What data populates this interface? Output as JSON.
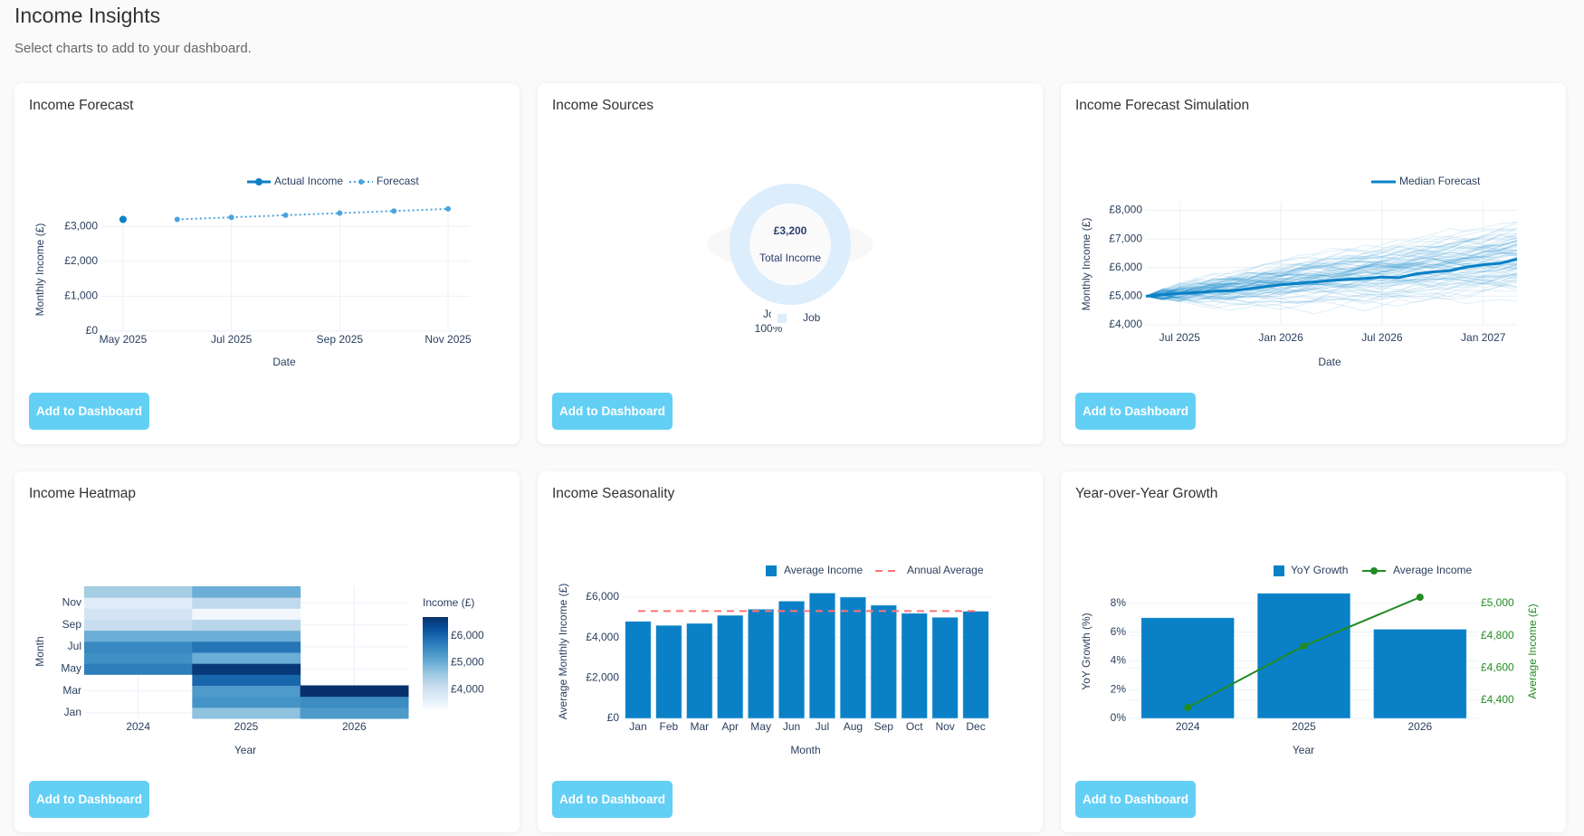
{
  "header": {
    "title": "Income Insights",
    "subtitle": "Select charts to add to your dashboard."
  },
  "button_label": "Add to Dashboard",
  "colors": {
    "primary": "#0a80c6",
    "forecast": "#4aa3df",
    "button": "#63cff5",
    "green": "#228b22",
    "annual_average": "#ff7373",
    "donut": "#dcedfc"
  },
  "cards": [
    {
      "title": "Income Forecast"
    },
    {
      "title": "Income Sources"
    },
    {
      "title": "Income Forecast Simulation"
    },
    {
      "title": "Income Heatmap"
    },
    {
      "title": "Income Seasonality"
    },
    {
      "title": "Year-over-Year Growth"
    }
  ],
  "chart_data": [
    {
      "type": "line",
      "xlabel": "Date",
      "ylabel": "Monthly Income (£)",
      "ylim": [
        0,
        3550
      ],
      "grid": true,
      "legend": "top-right",
      "x_ticks": [
        {
          "value": "2025-05",
          "label": "May 2025"
        },
        {
          "value": "2025-07",
          "label": "Jul 2025"
        },
        {
          "value": "2025-09",
          "label": "Sep 2025"
        },
        {
          "value": "2025-11",
          "label": "Nov 2025"
        }
      ],
      "y_ticks": [
        {
          "value": 0,
          "label": "£0"
        },
        {
          "value": 1000,
          "label": "£1,000"
        },
        {
          "value": 2000,
          "label": "£2,000"
        },
        {
          "value": 3000,
          "label": "£3,000"
        }
      ],
      "series": [
        {
          "name": "Actual Income",
          "x": [
            "2025-05"
          ],
          "y": [
            3200
          ]
        },
        {
          "name": "Forecast",
          "x": [
            "2025-06",
            "2025-07",
            "2025-08",
            "2025-09",
            "2025-10",
            "2025-11"
          ],
          "y": [
            3200,
            3260,
            3320,
            3380,
            3440,
            3500
          ]
        }
      ]
    },
    {
      "type": "pie",
      "center_value": "£3,200",
      "center_label": "Total Income",
      "legend": "bottom",
      "slices": [
        {
          "label": "Job",
          "value": 3200,
          "percent_label": "100%"
        }
      ]
    },
    {
      "type": "line",
      "xlabel": "Date",
      "ylabel": "Monthly Income (£)",
      "ylim": [
        3970,
        8300
      ],
      "grid": true,
      "legend": "top-right",
      "x_ticks": [
        {
          "value": "2025-07",
          "label": "Jul 2025"
        },
        {
          "value": "2026-01",
          "label": "Jan 2026"
        },
        {
          "value": "2026-07",
          "label": "Jul 2026"
        },
        {
          "value": "2027-01",
          "label": "Jan 2027"
        }
      ],
      "y_ticks": [
        {
          "value": 4000,
          "label": "£4,000"
        },
        {
          "value": 5000,
          "label": "£5,000"
        },
        {
          "value": 6000,
          "label": "£6,000"
        },
        {
          "value": 7000,
          "label": "£7,000"
        },
        {
          "value": 8000,
          "label": "£8,000"
        }
      ],
      "series": [
        {
          "name": "Median Forecast",
          "x": [
            "2025-05",
            "2025-06",
            "2025-07",
            "2025-08",
            "2025-09",
            "2025-10",
            "2025-11",
            "2025-12",
            "2026-01",
            "2026-02",
            "2026-03",
            "2026-04",
            "2026-05",
            "2026-06",
            "2026-07",
            "2026-08",
            "2026-09",
            "2026-10",
            "2026-11",
            "2026-12",
            "2027-01",
            "2027-02",
            "2027-03"
          ],
          "y": [
            5000,
            5050,
            5100,
            5130,
            5170,
            5190,
            5250,
            5330,
            5400,
            5450,
            5500,
            5550,
            5590,
            5620,
            5670,
            5650,
            5780,
            5850,
            5890,
            6020,
            6100,
            6150,
            6300
          ]
        }
      ]
    },
    {
      "type": "heatmap",
      "xlabel": "Year",
      "ylabel": "Month",
      "colorbar_title": "Income (£)",
      "colorscale": "Blues",
      "zlim": [
        3300,
        6700
      ],
      "years": [
        "2024",
        "2025",
        "2026"
      ],
      "months": [
        "Jan",
        "Feb",
        "Mar",
        "Apr",
        "May",
        "Jun",
        "Jul",
        "Aug",
        "Sep",
        "Oct",
        "Nov",
        "Dec"
      ],
      "y_tick_labels": [
        "Jan",
        "Mar",
        "May",
        "Jul",
        "Sep",
        "Nov"
      ],
      "colorbar_ticks": [
        {
          "value": 4000,
          "label": "£4,000"
        },
        {
          "value": 5000,
          "label": "£5,000"
        },
        {
          "value": 6000,
          "label": "£6,000"
        }
      ],
      "z": [
        [
          null,
          null,
          null,
          null,
          5700,
          5450,
          5550,
          5000,
          4100,
          3900,
          3700,
          4500
        ],
        [
          4700,
          5400,
          5300,
          6000,
          6600,
          5000,
          5800,
          5000,
          4300,
          3400,
          4200,
          5000
        ],
        [
          5300,
          5500,
          6700,
          null,
          null,
          null,
          null,
          null,
          null,
          null,
          null,
          null
        ]
      ]
    },
    {
      "type": "bar",
      "xlabel": "Month",
      "ylabel": "Average Monthly Income (£)",
      "ylim": [
        0,
        6580
      ],
      "grid": true,
      "legend": "top-right",
      "categories": [
        "Jan",
        "Feb",
        "Mar",
        "Apr",
        "May",
        "Jun",
        "Jul",
        "Aug",
        "Sep",
        "Oct",
        "Nov",
        "Dec"
      ],
      "y_ticks": [
        {
          "value": 0,
          "label": "£0"
        },
        {
          "value": 2000,
          "label": "£2,000"
        },
        {
          "value": 4000,
          "label": "£4,000"
        },
        {
          "value": 6000,
          "label": "£6,000"
        }
      ],
      "series": [
        {
          "name": "Average Income",
          "values": [
            4800,
            4600,
            4700,
            5100,
            5400,
            5800,
            6200,
            6000,
            5600,
            5200,
            5000,
            5300
          ]
        },
        {
          "name": "Annual Average",
          "value": 5308
        }
      ]
    },
    {
      "type": "bar",
      "xlabel": "Year",
      "ylabel": "YoY Growth (%)",
      "y2label": "Average Income (£)",
      "ylim": [
        0,
        9.0
      ],
      "y2lim": [
        4288,
        5090
      ],
      "grid": true,
      "legend": "top-right",
      "categories": [
        "2024",
        "2025",
        "2026"
      ],
      "y_ticks": [
        {
          "value": 0,
          "label": "0%"
        },
        {
          "value": 2,
          "label": "2%"
        },
        {
          "value": 4,
          "label": "4%"
        },
        {
          "value": 6,
          "label": "6%"
        },
        {
          "value": 8,
          "label": "8%"
        }
      ],
      "y2_ticks": [
        {
          "value": 4400,
          "label": "£4,400"
        },
        {
          "value": 4600,
          "label": "£4,600"
        },
        {
          "value": 4800,
          "label": "£4,800"
        },
        {
          "value": 5000,
          "label": "£5,000"
        }
      ],
      "series": [
        {
          "name": "YoY Growth",
          "values": [
            7.0,
            8.7,
            6.2
          ]
        },
        {
          "name": "Average Income",
          "values": [
            4355,
            4737,
            5039
          ]
        }
      ]
    }
  ]
}
